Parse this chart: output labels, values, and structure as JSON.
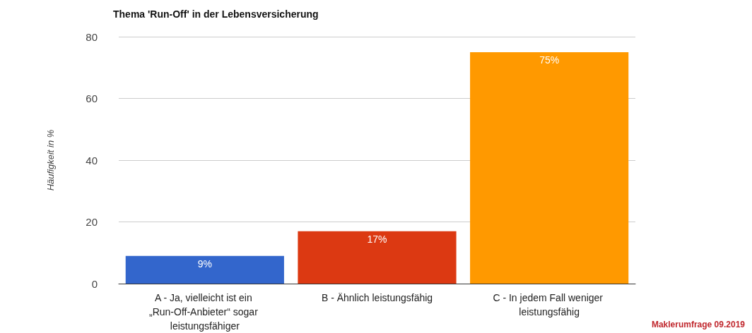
{
  "chart_data": {
    "type": "bar",
    "title": "Thema 'Run-Off' in der Lebensversicherung",
    "ylabel": "Häufigkeit in %",
    "categories": [
      "A - Ja, vielleicht ist ein „Run-Off-Anbieter“ sogar leistungsfähiger",
      "B - Ähnlich leistungsfähig",
      "C - In jedem Fall weniger leistungsfähig"
    ],
    "values": [
      9,
      17,
      75
    ],
    "colors": [
      "#3366cc",
      "#dc3912",
      "#ff9900"
    ],
    "value_labels": [
      "9%",
      "17%",
      "75%"
    ],
    "ylim": [
      0,
      80
    ],
    "yticks": [
      0,
      20,
      40,
      60,
      80
    ],
    "grid": "y",
    "annotations": [
      "Maklerumfrage 09.2019"
    ]
  }
}
